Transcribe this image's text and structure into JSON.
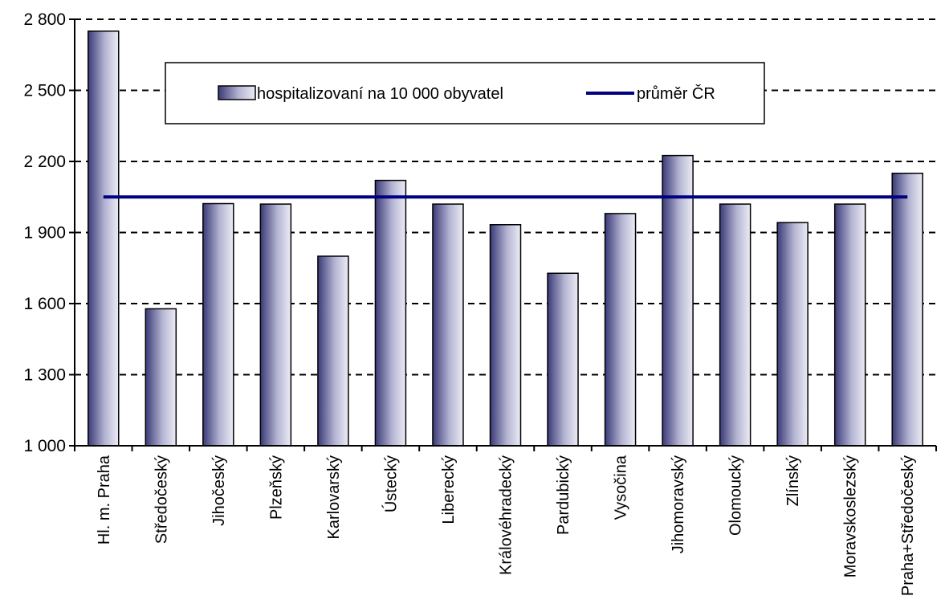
{
  "chart_data": {
    "type": "bar",
    "title": "",
    "xlabel": "",
    "ylabel": "",
    "ylim": [
      1000,
      2800
    ],
    "yticks": [
      1000,
      1300,
      1600,
      1900,
      2200,
      2500,
      2800
    ],
    "ytick_labels": [
      "1 000",
      "1 300",
      "1 600",
      "1 900",
      "2 200",
      "2 500",
      "2 800"
    ],
    "grid": "horizontal dashed",
    "legend_position": "top",
    "categories": [
      "Hl. m. Praha",
      "Středočeský",
      "Jihočeský",
      "Plzeňský",
      "Karlovarský",
      "Ústecký",
      "Liberecký",
      "Královéhradecký",
      "Pardubický",
      "Vysočina",
      "Jihomoravský",
      "Olomoucký",
      "Zlínský",
      "Moravskoslezský",
      "Praha+Středočeský"
    ],
    "series": [
      {
        "name": "hospitalizovaní na 10 000 obyvatel",
        "type": "bar",
        "color": "#3a3a78",
        "values": [
          2750,
          1578,
          2022,
          2020,
          1800,
          2120,
          2020,
          1933,
          1728,
          1980,
          2225,
          2020,
          1942,
          2020,
          2150
        ]
      },
      {
        "name": "průměr ČR",
        "type": "line",
        "color": "#000080",
        "value": 2050
      }
    ]
  }
}
